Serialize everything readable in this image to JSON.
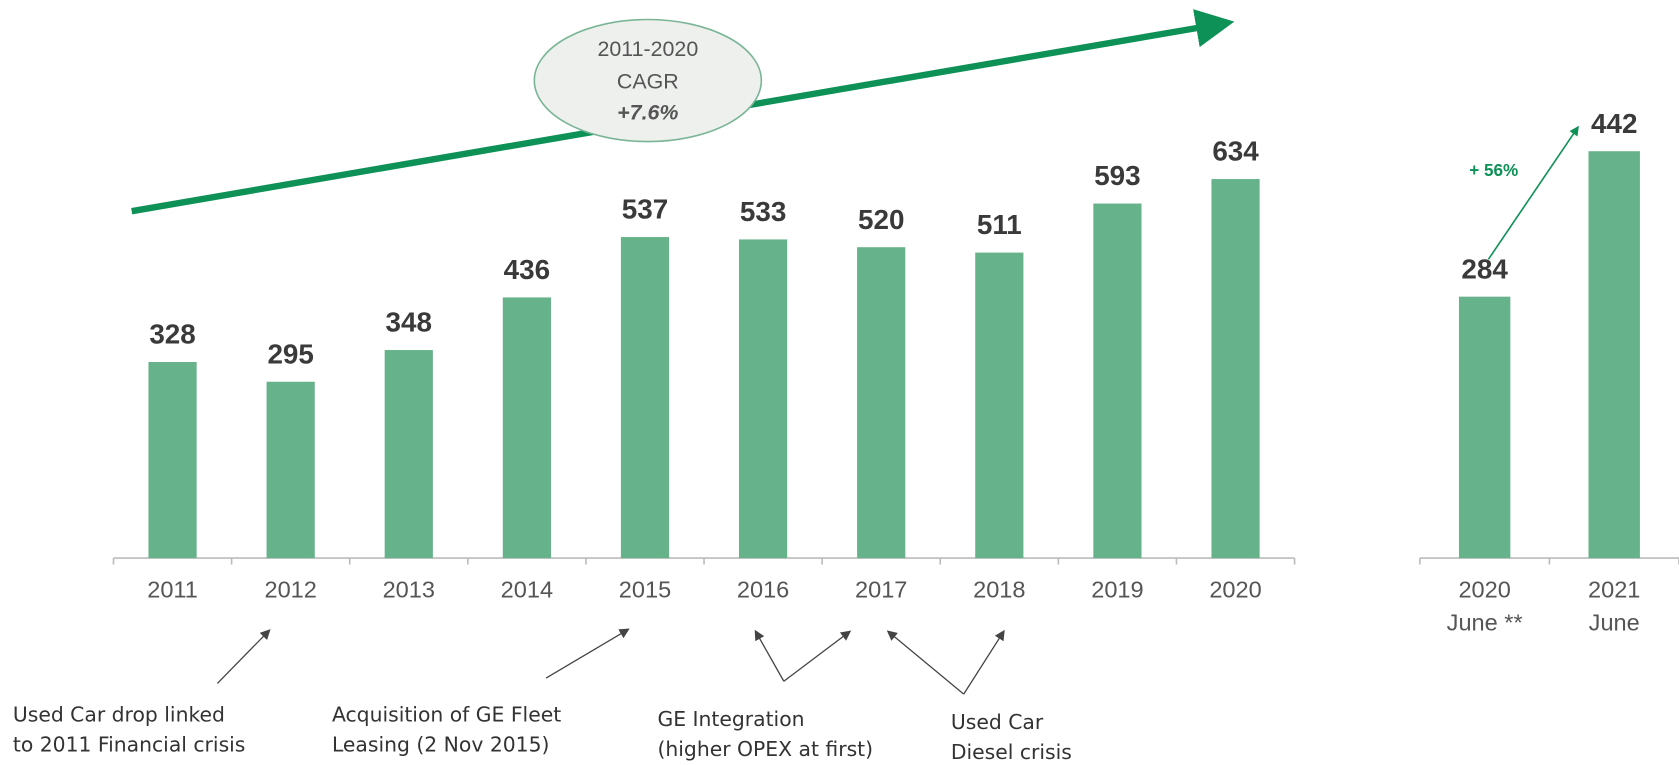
{
  "chart_data": [
    {
      "type": "bar",
      "categories": [
        "2011",
        "2012",
        "2013",
        "2014",
        "2015",
        "2016",
        "2017",
        "2018",
        "2019",
        "2020"
      ],
      "values": [
        328,
        295,
        348,
        436,
        537,
        533,
        520,
        511,
        593,
        634
      ],
      "color": "#66b28a",
      "annotations": [
        "2011-2020",
        "CAGR",
        "+7.6%"
      ],
      "notes": [
        [
          "Used Car drop linked",
          "to 2011 Financial crisis"
        ],
        [
          "Acquisition of GE Fleet",
          "Leasing (2 Nov 2015)"
        ],
        [
          "GE Integration",
          "(higher OPEX at first)"
        ],
        [
          "Used Car",
          "Diesel crisis"
        ]
      ]
    },
    {
      "type": "bar",
      "categories": [
        [
          "2020",
          "June **"
        ],
        [
          "2021",
          "June"
        ]
      ],
      "values": [
        284,
        442
      ],
      "color": "#66b28a",
      "annotations": [
        "+ 56%"
      ]
    }
  ]
}
